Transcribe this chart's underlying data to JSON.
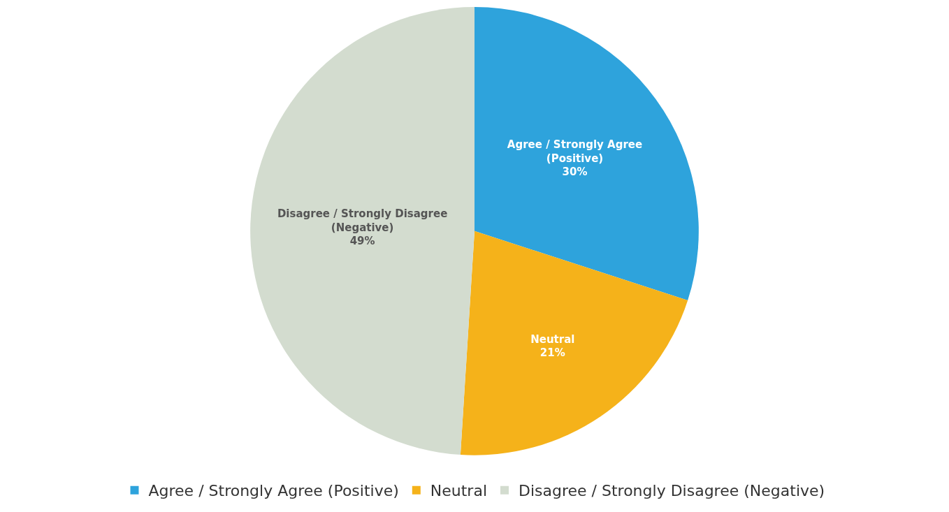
{
  "chart_data": {
    "type": "pie",
    "categories": [
      "Agree / Strongly Agree (Positive)",
      "Neutral",
      "Disagree / Strongly Disagree (Negative)"
    ],
    "values": [
      30,
      21,
      49
    ],
    "colors": [
      "#2ea3dc",
      "#f5b21a",
      "#d3dccf"
    ],
    "value_labels": [
      "30%",
      "21%",
      "49%"
    ],
    "legend": "bottom"
  }
}
